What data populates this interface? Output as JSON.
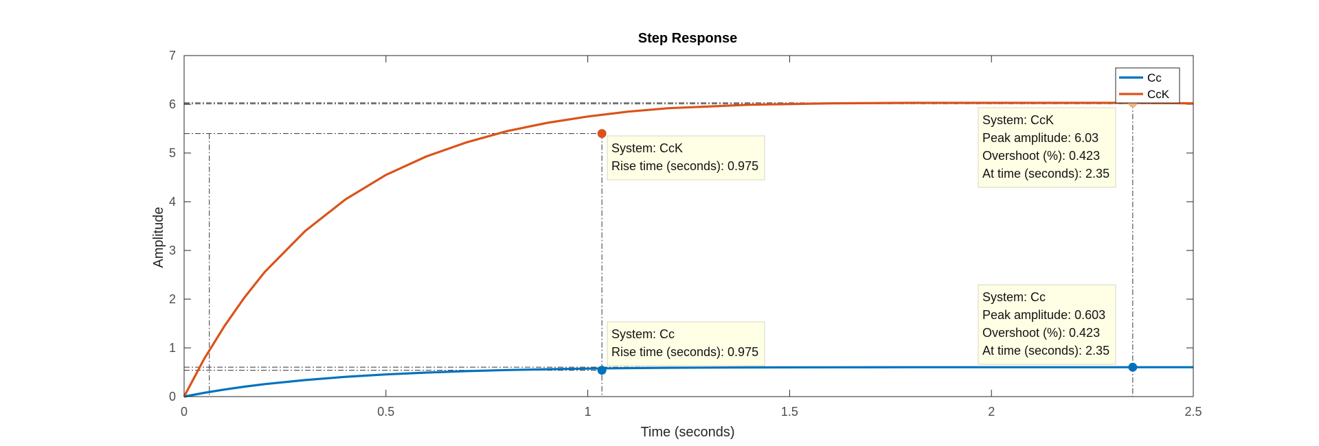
{
  "chart_data": {
    "type": "line",
    "title": "Step Response",
    "xlabel": "Time (seconds)",
    "ylabel": "Amplitude",
    "xlim": [
      0,
      2.5
    ],
    "ylim": [
      0,
      7
    ],
    "xticks": [
      0,
      0.5,
      1,
      1.5,
      2,
      2.5
    ],
    "xtick_labels": [
      "0",
      "0.5",
      "1",
      "1.5",
      "2",
      "2.5"
    ],
    "yticks": [
      0,
      1,
      2,
      3,
      4,
      5,
      6,
      7
    ],
    "ytick_labels": [
      "0",
      "1",
      "2",
      "3",
      "4",
      "5",
      "6",
      "7"
    ],
    "grid": false,
    "legend_position": "top-right",
    "series": [
      {
        "name": "Cc",
        "color": "#0072BD",
        "x": [
          0,
          0.05,
          0.1,
          0.15,
          0.2,
          0.3,
          0.4,
          0.5,
          0.6,
          0.7,
          0.8,
          0.9,
          1.0,
          1.1,
          1.2,
          1.4,
          1.6,
          1.8,
          2.0,
          2.2,
          2.35,
          2.5
        ],
        "y": [
          0,
          0.078,
          0.145,
          0.204,
          0.256,
          0.34,
          0.405,
          0.455,
          0.493,
          0.522,
          0.545,
          0.562,
          0.575,
          0.585,
          0.592,
          0.599,
          0.602,
          0.603,
          0.603,
          0.603,
          0.603,
          0.603
        ]
      },
      {
        "name": "CcK",
        "color": "#D95319",
        "x": [
          0,
          0.05,
          0.1,
          0.15,
          0.2,
          0.3,
          0.4,
          0.5,
          0.6,
          0.7,
          0.8,
          0.9,
          1.0,
          1.1,
          1.2,
          1.4,
          1.6,
          1.8,
          2.0,
          2.2,
          2.35,
          2.5
        ],
        "y": [
          0,
          0.78,
          1.45,
          2.04,
          2.56,
          3.4,
          4.05,
          4.55,
          4.93,
          5.22,
          5.45,
          5.62,
          5.75,
          5.85,
          5.92,
          5.99,
          6.02,
          6.03,
          6.03,
          6.03,
          6.03,
          6.02
        ]
      }
    ],
    "markers": [
      {
        "series": "CcK",
        "x": 1.035,
        "y": 5.4,
        "color": "#D95319"
      },
      {
        "series": "Cc",
        "x": 1.035,
        "y": 0.54,
        "color": "#0072BD"
      },
      {
        "series": "CcK",
        "x": 2.35,
        "y": 6.03,
        "color": "#F4B183"
      },
      {
        "series": "Cc",
        "x": 2.35,
        "y": 0.603,
        "color": "#0072BD"
      }
    ],
    "annotations": [
      {
        "name": "cck-rise-time-tooltip",
        "lines": [
          "System: CcK",
          "Rise time (seconds): 0.975"
        ]
      },
      {
        "name": "cc-rise-time-tooltip",
        "lines": [
          "System: Cc",
          "Rise time (seconds): 0.975"
        ]
      },
      {
        "name": "cck-peak-tooltip",
        "lines": [
          "System: CcK",
          "Peak amplitude: 6.03",
          "Overshoot (%): 0.423",
          "At time (seconds): 2.35"
        ]
      },
      {
        "name": "cc-peak-tooltip",
        "lines": [
          "System: Cc",
          "Peak amplitude: 0.603",
          "Overshoot (%): 0.423",
          "At time (seconds): 2.35"
        ]
      }
    ]
  }
}
